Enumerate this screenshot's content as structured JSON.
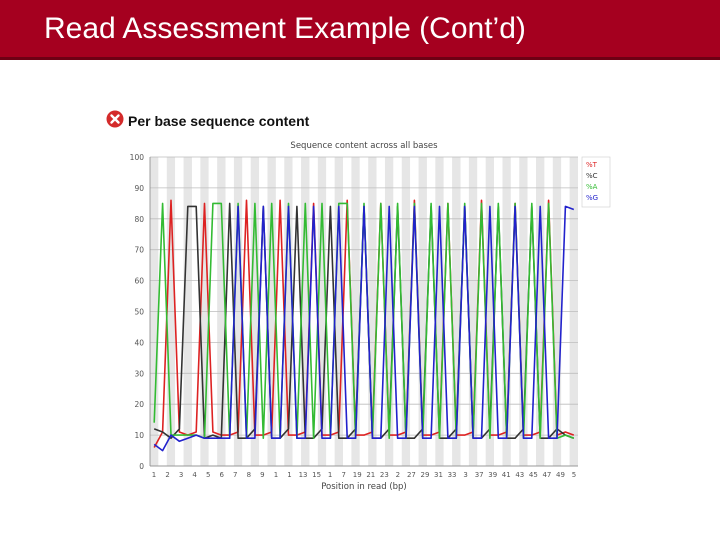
{
  "slide": {
    "title": "Read Assessment Example (Cont’d)"
  },
  "module": {
    "title": "Per base sequence content",
    "status_icon": "error-cross-icon"
  },
  "chart_data": {
    "type": "line",
    "title": "Sequence content across all bases",
    "xlabel": "Position in read (bp)",
    "ylabel": "",
    "ylim": [
      0,
      100
    ],
    "yticks": [
      "0",
      "10",
      "20",
      "30",
      "40",
      "50",
      "60",
      "70",
      "80",
      "90",
      "100"
    ],
    "x": [
      "1",
      "2",
      "3",
      "4",
      "5",
      "6",
      "7",
      "8",
      "9",
      "10",
      "11",
      "12",
      "13",
      "14",
      "15",
      "16",
      "17",
      "18",
      "19",
      "20",
      "21",
      "22",
      "23",
      "24",
      "25",
      "26",
      "27",
      "28",
      "29",
      "30",
      "31",
      "32",
      "33",
      "34",
      "35",
      "36",
      "37",
      "38",
      "39",
      "40",
      "41",
      "42",
      "43",
      "44",
      "45",
      "46",
      "47",
      "48",
      "49",
      "50",
      "51"
    ],
    "x_tick_labels": [
      "1",
      "2",
      "3",
      "4",
      "5",
      "6",
      "7",
      "8",
      "9",
      "1",
      "1",
      "13",
      "15",
      "1",
      "7",
      "19",
      "21",
      "23",
      "2",
      "27",
      "29",
      "31",
      "33",
      "3",
      "37",
      "39",
      "41",
      "43",
      "45",
      "47",
      "49",
      "5"
    ],
    "grid": true,
    "legend_position": "top-right",
    "series": [
      {
        "name": "%T",
        "color": "#dd2222",
        "values": [
          6,
          11,
          86,
          11,
          10,
          11,
          85,
          11,
          10,
          10,
          11,
          86,
          10,
          10,
          11,
          86,
          10,
          10,
          11,
          85,
          10,
          10,
          11,
          86,
          10,
          10,
          11,
          85,
          10,
          10,
          11,
          86,
          10,
          10,
          11,
          85,
          10,
          10,
          11,
          86,
          10,
          10,
          11,
          85,
          10,
          10,
          11,
          86,
          10,
          11,
          10
        ]
      },
      {
        "name": "%C",
        "color": "#333333",
        "values": [
          12,
          11,
          9,
          12,
          84,
          84,
          9,
          10,
          9,
          85,
          9,
          9,
          12,
          84,
          9,
          9,
          12,
          84,
          9,
          9,
          12,
          84,
          9,
          9,
          12,
          84,
          9,
          9,
          12,
          84,
          9,
          9,
          12,
          84,
          9,
          9,
          12,
          84,
          9,
          9,
          12,
          84,
          9,
          9,
          12,
          84,
          9,
          9,
          12,
          10,
          9
        ]
      },
      {
        "name": "%A",
        "color": "#33bb33",
        "values": [
          14,
          85,
          10,
          10,
          10,
          10,
          9,
          85,
          85,
          9,
          85,
          9,
          85,
          9,
          85,
          9,
          85,
          9,
          85,
          9,
          85,
          9,
          85,
          85,
          9,
          85,
          9,
          85,
          9,
          85,
          9,
          85,
          9,
          85,
          9,
          85,
          9,
          85,
          9,
          85,
          9,
          85,
          9,
          85,
          9,
          85,
          9,
          85,
          9,
          10,
          9
        ]
      },
      {
        "name": "%G",
        "color": "#2222cc",
        "values": [
          7,
          5,
          10,
          8,
          9,
          10,
          9,
          9,
          9,
          9,
          84,
          9,
          9,
          84,
          9,
          9,
          84,
          9,
          9,
          84,
          9,
          9,
          84,
          9,
          9,
          84,
          9,
          9,
          84,
          9,
          9,
          84,
          9,
          9,
          84,
          9,
          9,
          84,
          9,
          9,
          84,
          9,
          9,
          84,
          9,
          9,
          84,
          9,
          9,
          84,
          83
        ]
      }
    ]
  }
}
